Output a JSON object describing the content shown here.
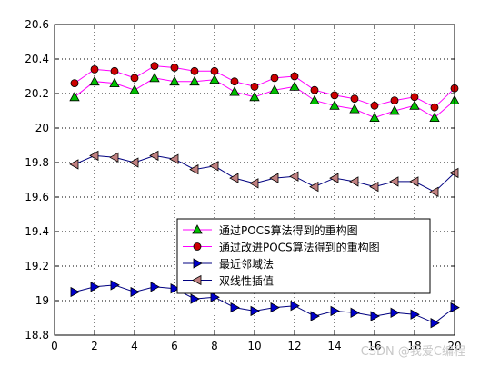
{
  "chart_data": {
    "type": "line",
    "title": "",
    "xlabel": "",
    "ylabel": "",
    "xlim": [
      0,
      20
    ],
    "ylim": [
      18.8,
      20.6
    ],
    "x_ticks": [
      0,
      2,
      4,
      6,
      8,
      10,
      12,
      14,
      16,
      18,
      20
    ],
    "y_ticks": [
      18.8,
      19,
      19.2,
      19.4,
      19.6,
      19.8,
      20,
      20.2,
      20.4,
      20.6
    ],
    "x_tick_labels": [
      "0",
      "2",
      "4",
      "6",
      "8",
      "10",
      "12",
      "14",
      "16",
      "18",
      "20"
    ],
    "y_tick_labels": [
      "18.8",
      "19",
      "19.2",
      "19.4",
      "19.6",
      "19.8",
      "20",
      "20.2",
      "20.4",
      "20.6"
    ],
    "grid": "dotted",
    "legend_position": "lower-right",
    "x": [
      1,
      2,
      3,
      4,
      5,
      6,
      7,
      8,
      9,
      10,
      11,
      12,
      13,
      14,
      15,
      16,
      17,
      18,
      19,
      20
    ],
    "series": [
      {
        "name": "通过POCS算法得到的重构图",
        "line_color": "#ff00ff",
        "marker": "triangle-up",
        "marker_color": "#00c000",
        "values": [
          20.18,
          20.27,
          20.26,
          20.22,
          20.29,
          20.27,
          20.27,
          20.28,
          20.21,
          20.18,
          20.22,
          20.24,
          20.16,
          20.13,
          20.11,
          20.06,
          20.1,
          20.13,
          20.06,
          20.16
        ]
      },
      {
        "name": "通过改进POCS算法得到的重构图",
        "line_color": "#ff00ff",
        "marker": "circle",
        "marker_color": "#cc0000",
        "values": [
          20.26,
          20.34,
          20.33,
          20.29,
          20.36,
          20.35,
          20.33,
          20.33,
          20.27,
          20.24,
          20.29,
          20.3,
          20.22,
          20.19,
          20.17,
          20.13,
          20.16,
          20.18,
          20.12,
          20.23
        ]
      },
      {
        "name": "最近邻域法",
        "line_color": "#000080",
        "marker": "triangle-right",
        "marker_color": "#0000cc",
        "values": [
          19.05,
          19.08,
          19.09,
          19.05,
          19.08,
          19.07,
          19.01,
          19.02,
          18.96,
          18.94,
          18.96,
          18.97,
          18.91,
          18.94,
          18.93,
          18.91,
          18.93,
          18.92,
          18.87,
          18.96
        ]
      },
      {
        "name": "双线性插值",
        "line_color": "#000080",
        "marker": "triangle-left",
        "marker_color": "#c08080",
        "values": [
          19.79,
          19.84,
          19.83,
          19.8,
          19.84,
          19.82,
          19.76,
          19.78,
          19.71,
          19.68,
          19.71,
          19.72,
          19.66,
          19.71,
          19.69,
          19.66,
          19.69,
          19.69,
          19.63,
          19.74
        ]
      }
    ]
  },
  "watermark": "CSDN @我爱C编程"
}
